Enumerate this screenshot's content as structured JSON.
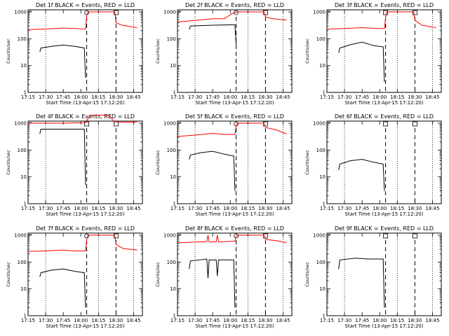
{
  "chart_data": [
    {
      "type": "line",
      "title": "Det 1f BLACK = Events, RED = LLD",
      "xlabel": "Start Time (13-Apr-15 17:12:20)",
      "ylabel": "Counts/sec",
      "yscale": "log",
      "ylim": [
        1,
        1200
      ],
      "xlim": [
        17.25,
        18.875
      ],
      "x_ticks": [
        "17:15",
        "17:30",
        "17:45",
        "18:00",
        "18:15",
        "18:30",
        "18:45"
      ],
      "y_ticks": [
        "1",
        "10",
        "100",
        "1000"
      ],
      "dotted_lines": [
        "17:30",
        "18:15",
        "18:45"
      ],
      "dashed_lines": [
        "18:05",
        "18:30"
      ],
      "markers": [
        {
          "shape": "circle",
          "x": "18:05"
        },
        {
          "shape": "square",
          "x": "18:30"
        }
      ],
      "series": [
        {
          "color": "#ff0000",
          "points": [
            [
              "17:15",
              220
            ],
            [
              "17:30",
              230
            ],
            [
              "17:45",
              250
            ],
            [
              "17:55",
              240
            ],
            [
              "18:04",
              230
            ],
            [
              "18:05",
              700
            ],
            [
              "18:06",
              1000
            ],
            [
              "18:29",
              1000
            ],
            [
              "18:30",
              400
            ],
            [
              "18:35",
              320
            ],
            [
              "18:48",
              260
            ]
          ]
        },
        {
          "color": "#000000",
          "points": [
            [
              "17:25",
              32
            ],
            [
              "17:26",
              45
            ],
            [
              "17:35",
              52
            ],
            [
              "17:45",
              58
            ],
            [
              "17:55",
              52
            ],
            [
              "18:03",
              45
            ],
            [
              "18:04",
              3.5
            ]
          ]
        }
      ]
    },
    {
      "type": "line",
      "title": "Det 2f BLACK = Events, RED = LLD",
      "xlabel": "Start Time (13-Apr-15 17:12:20)",
      "ylabel": "Counts/sec",
      "yscale": "log",
      "ylim": [
        1,
        1200
      ],
      "xlim": [
        17.25,
        18.875
      ],
      "x_ticks": [
        "17:15",
        "17:30",
        "17:45",
        "18:00",
        "18:15",
        "18:30",
        "18:45"
      ],
      "y_ticks": [
        "1",
        "10",
        "100",
        "1000"
      ],
      "dotted_lines": [
        "17:30",
        "18:15",
        "18:45"
      ],
      "dashed_lines": [
        "18:05",
        "18:30"
      ],
      "markers": [
        {
          "shape": "circle",
          "x": "18:05"
        },
        {
          "shape": "square",
          "x": "18:30"
        }
      ],
      "series": [
        {
          "color": "#ff0000",
          "points": [
            [
              "17:15",
              420
            ],
            [
              "17:30",
              480
            ],
            [
              "17:45",
              560
            ],
            [
              "17:55",
              560
            ],
            [
              "18:02",
              900
            ],
            [
              "18:06",
              1000
            ],
            [
              "18:29",
              1000
            ],
            [
              "18:30",
              650
            ],
            [
              "18:36",
              560
            ],
            [
              "18:48",
              500
            ]
          ]
        },
        {
          "color": "#000000",
          "points": [
            [
              "17:25",
              220
            ],
            [
              "17:26",
              300
            ],
            [
              "17:45",
              320
            ],
            [
              "18:00",
              330
            ],
            [
              "18:04",
              330
            ],
            [
              "18:05",
              60
            ]
          ]
        }
      ]
    },
    {
      "type": "line",
      "title": "Det 3f BLACK = Events, RED = LLD",
      "xlabel": "Start Time (13-Apr-15 17:12:20)",
      "ylabel": "Counts/sec",
      "yscale": "log",
      "ylim": [
        1,
        1200
      ],
      "xlim": [
        17.25,
        18.875
      ],
      "x_ticks": [
        "17:15",
        "17:30",
        "17:45",
        "18:00",
        "18:15",
        "18:30",
        "18:45"
      ],
      "y_ticks": [
        "1",
        "10",
        "100",
        "1000"
      ],
      "dotted_lines": [
        "17:30",
        "18:15",
        "18:45"
      ],
      "dashed_lines": [
        "18:05",
        "18:30"
      ],
      "markers": [
        {
          "shape": "square",
          "x": "18:05"
        },
        {
          "shape": "square",
          "x": "18:30"
        }
      ],
      "series": [
        {
          "color": "#ff0000",
          "points": [
            [
              "17:15",
              230
            ],
            [
              "17:30",
              240
            ],
            [
              "17:45",
              260
            ],
            [
              "18:00",
              240
            ],
            [
              "18:04",
              240
            ],
            [
              "18:05",
              600
            ],
            [
              "18:06",
              1000
            ],
            [
              "18:29",
              1000
            ],
            [
              "18:30",
              500
            ],
            [
              "18:36",
              320
            ],
            [
              "18:48",
              260
            ]
          ]
        },
        {
          "color": "#000000",
          "points": [
            [
              "17:25",
              30
            ],
            [
              "17:26",
              45
            ],
            [
              "17:35",
              60
            ],
            [
              "17:45",
              75
            ],
            [
              "17:55",
              55
            ],
            [
              "18:03",
              50
            ],
            [
              "18:04",
              2.5
            ]
          ]
        }
      ]
    },
    {
      "type": "line",
      "title": "Det 4f BLACK = Events, RED = LLD",
      "xlabel": "Start Time (13-Apr-15 17:12:20)",
      "ylabel": "Counts/sec",
      "yscale": "log",
      "ylim": [
        1,
        1200
      ],
      "xlim": [
        17.25,
        18.875
      ],
      "x_ticks": [
        "17:15",
        "17:30",
        "17:45",
        "18:00",
        "18:15",
        "18:30",
        "18:45"
      ],
      "y_ticks": [
        "1",
        "10",
        "100",
        "1000"
      ],
      "dotted_lines": [
        "17:30",
        "18:15",
        "18:45"
      ],
      "dashed_lines": [
        "18:05",
        "18:30"
      ],
      "markers": [
        {
          "shape": "square",
          "x": "18:05"
        },
        {
          "shape": "square",
          "x": "18:30"
        }
      ],
      "series": [
        {
          "color": "#ff0000",
          "points": [
            [
              "17:15",
              1000
            ],
            [
              "17:30",
              1000
            ],
            [
              "17:45",
              1000
            ],
            [
              "18:04",
              1050
            ],
            [
              "18:08",
              2000
            ],
            [
              "18:24",
              2000
            ],
            [
              "18:28",
              1200
            ],
            [
              "18:32",
              1100
            ],
            [
              "18:48",
              1100
            ]
          ]
        },
        {
          "color": "#000000",
          "points": [
            [
              "17:25",
              400
            ],
            [
              "17:26",
              600
            ],
            [
              "17:45",
              600
            ],
            [
              "18:00",
              600
            ],
            [
              "18:03",
              600
            ],
            [
              "18:04",
              5
            ]
          ]
        }
      ]
    },
    {
      "type": "line",
      "title": "Det 5f BLACK = Events, RED = LLD",
      "xlabel": "Start Time (13-Apr-15 17:12:20)",
      "ylabel": "Counts/sec",
      "yscale": "log",
      "ylim": [
        1,
        1200
      ],
      "xlim": [
        17.25,
        18.875
      ],
      "x_ticks": [
        "17:15",
        "17:30",
        "17:45",
        "18:00",
        "18:15",
        "18:30",
        "18:45"
      ],
      "y_ticks": [
        "1",
        "10",
        "100",
        "1000"
      ],
      "dotted_lines": [
        "17:30",
        "18:15",
        "18:45"
      ],
      "dashed_lines": [
        "18:05",
        "18:30"
      ],
      "markers": [
        {
          "shape": "circle",
          "x": "18:05"
        },
        {
          "shape": "square",
          "x": "18:30"
        }
      ],
      "series": [
        {
          "color": "#ff0000",
          "points": [
            [
              "17:15",
              320
            ],
            [
              "17:30",
              360
            ],
            [
              "17:45",
              420
            ],
            [
              "17:55",
              380
            ],
            [
              "18:04",
              380
            ],
            [
              "18:05",
              800
            ],
            [
              "18:06",
              1000
            ],
            [
              "18:29",
              1000
            ],
            [
              "18:30",
              700
            ],
            [
              "18:40",
              550
            ],
            [
              "18:48",
              400
            ]
          ]
        },
        {
          "color": "#000000",
          "points": [
            [
              "17:25",
              45
            ],
            [
              "17:26",
              65
            ],
            [
              "17:35",
              80
            ],
            [
              "17:45",
              90
            ],
            [
              "17:55",
              70
            ],
            [
              "18:03",
              60
            ],
            [
              "18:04",
              3
            ]
          ]
        }
      ]
    },
    {
      "type": "line",
      "title": "Det 6f BLACK = Events, RED = LLD",
      "xlabel": "Start Time (13-Apr-15 17:12:20)",
      "ylabel": "Counts/sec",
      "yscale": "log",
      "ylim": [
        1,
        1200
      ],
      "xlim": [
        17.25,
        18.875
      ],
      "x_ticks": [
        "17:15",
        "17:30",
        "17:45",
        "18:00",
        "18:15",
        "18:30",
        "18:45"
      ],
      "y_ticks": [
        "1",
        "10",
        "100",
        "1000"
      ],
      "dotted_lines": [
        "17:30",
        "18:15",
        "18:45"
      ],
      "dashed_lines": [
        "18:05",
        "18:30"
      ],
      "markers": [
        {
          "shape": "square",
          "x": "18:05"
        },
        {
          "shape": "square",
          "x": "18:30"
        }
      ],
      "series": [
        {
          "color": "#000000",
          "points": [
            [
              "17:25",
              18
            ],
            [
              "17:26",
              30
            ],
            [
              "17:35",
              40
            ],
            [
              "17:45",
              45
            ],
            [
              "17:55",
              35
            ],
            [
              "18:03",
              30
            ],
            [
              "18:04",
              3
            ]
          ]
        }
      ]
    },
    {
      "type": "line",
      "title": "Det 7f BLACK = Events, RED = LLD",
      "xlabel": "Start Time (13-Apr-15 17:12:20)",
      "ylabel": "Counts/sec",
      "yscale": "log",
      "ylim": [
        1,
        1200
      ],
      "xlim": [
        17.25,
        18.875
      ],
      "x_ticks": [
        "17:15",
        "17:30",
        "17:45",
        "18:00",
        "18:15",
        "18:30",
        "18:45"
      ],
      "y_ticks": [
        "1",
        "10",
        "100",
        "1000"
      ],
      "dotted_lines": [
        "17:30",
        "18:15",
        "18:45"
      ],
      "dashed_lines": [
        "18:05",
        "18:30"
      ],
      "markers": [
        {
          "shape": "circle",
          "x": "18:05"
        },
        {
          "shape": "square",
          "x": "18:30"
        }
      ],
      "series": [
        {
          "color": "#ff0000",
          "points": [
            [
              "17:15",
              250
            ],
            [
              "17:30",
              260
            ],
            [
              "17:45",
              280
            ],
            [
              "17:55",
              260
            ],
            [
              "18:04",
              260
            ],
            [
              "18:05",
              700
            ],
            [
              "18:06",
              1000
            ],
            [
              "18:29",
              1000
            ],
            [
              "18:30",
              450
            ],
            [
              "18:36",
              320
            ],
            [
              "18:48",
              280
            ]
          ]
        },
        {
          "color": "#000000",
          "points": [
            [
              "17:25",
              28
            ],
            [
              "17:26",
              40
            ],
            [
              "17:35",
              50
            ],
            [
              "17:45",
              55
            ],
            [
              "17:55",
              45
            ],
            [
              "18:03",
              40
            ],
            [
              "18:04",
              2
            ]
          ]
        }
      ]
    },
    {
      "type": "line",
      "title": "Det 8f BLACK = Events, RED = LLD",
      "xlabel": "Start Time (13-Apr-15 17:12:20)",
      "ylabel": "Counts/sec",
      "yscale": "log",
      "ylim": [
        1,
        1200
      ],
      "xlim": [
        17.25,
        18.875
      ],
      "x_ticks": [
        "17:15",
        "17:30",
        "17:45",
        "18:00",
        "18:15",
        "18:30",
        "18:45"
      ],
      "y_ticks": [
        "1",
        "10",
        "100",
        "1000"
      ],
      "dotted_lines": [
        "17:30",
        "18:15",
        "18:45"
      ],
      "dashed_lines": [
        "18:05",
        "18:30"
      ],
      "markers": [
        {
          "shape": "circle",
          "x": "18:05"
        },
        {
          "shape": "square",
          "x": "18:30"
        }
      ],
      "series": [
        {
          "color": "#ff0000",
          "points": [
            [
              "17:15",
              520
            ],
            [
              "17:30",
              560
            ],
            [
              "17:40",
              580
            ],
            [
              "17:41",
              1000
            ],
            [
              "17:42",
              560
            ],
            [
              "17:48",
              570
            ],
            [
              "17:49",
              1000
            ],
            [
              "17:50",
              560
            ],
            [
              "18:04",
              600
            ],
            [
              "18:05",
              900
            ],
            [
              "18:06",
              1000
            ],
            [
              "18:29",
              1000
            ],
            [
              "18:30",
              700
            ],
            [
              "18:40",
              620
            ],
            [
              "18:48",
              520
            ]
          ]
        },
        {
          "color": "#000000",
          "points": [
            [
              "17:25",
              55
            ],
            [
              "17:26",
              110
            ],
            [
              "17:40",
              130
            ],
            [
              "17:41",
              25
            ],
            [
              "17:42",
              120
            ],
            [
              "17:48",
              120
            ],
            [
              "17:49",
              30
            ],
            [
              "17:50",
              120
            ],
            [
              "18:03",
              120
            ],
            [
              "18:04",
              2
            ]
          ]
        }
      ]
    },
    {
      "type": "line",
      "title": "Det 9f BLACK = Events, RED = LLD",
      "xlabel": "Start Time (13-Apr-15 17:12:20)",
      "ylabel": "Counts/sec",
      "yscale": "log",
      "ylim": [
        1,
        1200
      ],
      "xlim": [
        17.25,
        18.875
      ],
      "x_ticks": [
        "17:15",
        "17:30",
        "17:45",
        "18:00",
        "18:15",
        "18:30",
        "18:45"
      ],
      "y_ticks": [
        "1",
        "10",
        "100",
        "1000"
      ],
      "dotted_lines": [
        "17:30",
        "18:15",
        "18:45"
      ],
      "dashed_lines": [
        "18:05",
        "18:30"
      ],
      "markers": [
        {
          "shape": "square",
          "x": "18:05"
        },
        {
          "shape": "square",
          "x": "18:30"
        }
      ],
      "series": [
        {
          "color": "#000000",
          "points": [
            [
              "17:25",
              55
            ],
            [
              "17:26",
              120
            ],
            [
              "17:40",
              140
            ],
            [
              "17:50",
              130
            ],
            [
              "18:03",
              130
            ],
            [
              "18:04",
              2
            ]
          ]
        }
      ]
    }
  ]
}
